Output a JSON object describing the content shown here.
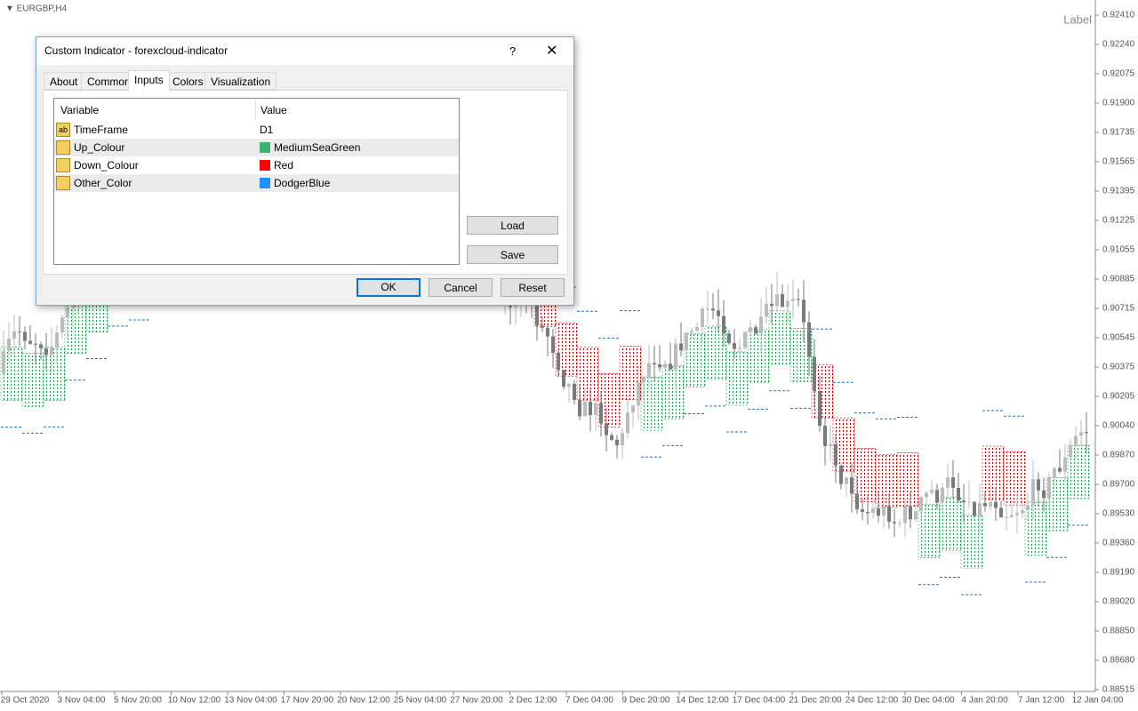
{
  "chart": {
    "symbol": "EURGBP,H4",
    "label": "Label",
    "price_labels": [
      "0.92410",
      "0.92240",
      "0.92075",
      "0.91900",
      "0.91735",
      "0.91565",
      "0.91395",
      "0.91225",
      "0.91055",
      "0.90885",
      "0.90715",
      "0.90545",
      "0.90375",
      "0.90205",
      "0.90040",
      "0.89870",
      "0.89700",
      "0.89530",
      "0.89360",
      "0.89190",
      "0.89020",
      "0.88850",
      "0.88680",
      "0.88515"
    ],
    "time_labels": [
      "29 Oct 2020",
      "3 Nov 04:00",
      "5 Nov 20:00",
      "10 Nov 12:00",
      "13 Nov 04:00",
      "17 Nov 20:00",
      "20 Nov 12:00",
      "25 Nov 04:00",
      "27 Nov 20:00",
      "2 Dec 12:00",
      "7 Dec 04:00",
      "9 Dec 20:00",
      "14 Dec 12:00",
      "17 Dec 04:00",
      "21 Dec 20:00",
      "24 Dec 12:00",
      "30 Dec 04:00",
      "4 Jan 20:00",
      "7 Jan 12:00",
      "12 Jan 04:00"
    ]
  },
  "dialog": {
    "title": "Custom Indicator - forexcloud-indicator",
    "help": "?",
    "tabs": [
      "About",
      "Common",
      "Inputs",
      "Colors",
      "Visualization"
    ],
    "active_tab": 2,
    "table": {
      "headers": [
        "Variable",
        "Value"
      ],
      "rows": [
        {
          "icon": "ab",
          "variable": "TimeFrame",
          "value": "D1"
        },
        {
          "variable": "Up_Colour",
          "value": "MediumSeaGreen",
          "swatch": "#3cb371"
        },
        {
          "variable": "Down_Colour",
          "value": "Red",
          "swatch": "#ff0000"
        },
        {
          "variable": "Other_Color",
          "value": "DodgerBlue",
          "swatch": "#1e90ff"
        }
      ]
    },
    "side_buttons": [
      "Load",
      "Save"
    ],
    "buttons": [
      "OK",
      "Cancel",
      "Reset"
    ]
  }
}
